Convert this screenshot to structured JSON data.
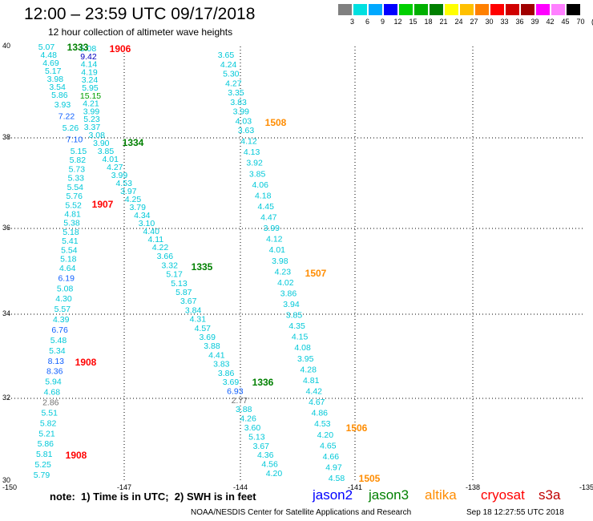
{
  "header": {
    "title": "12:00 – 23:59 UTC 09/17/2018",
    "subtitle": "12 hour collection of altimeter wave heights"
  },
  "color_scale": {
    "labels": [
      "3",
      "6",
      "9",
      "12",
      "15",
      "18",
      "21",
      "24",
      "27",
      "30",
      "33",
      "36",
      "39",
      "42",
      "45",
      "70",
      "(ft)"
    ],
    "colors": [
      "#808080",
      "#00e0e0",
      "#00a8ff",
      "#0000ff",
      "#00d000",
      "#00b000",
      "#008000",
      "#ffff00",
      "#ffc000",
      "#ff8000",
      "#ff0000",
      "#d00000",
      "#a00000",
      "#ff00ff",
      "#ff80ff",
      "#000000"
    ]
  },
  "axes": {
    "x_ticks": [
      "-150",
      "-147",
      "-144",
      "-141",
      "-138",
      "-135"
    ],
    "y_ticks": [
      "40",
      "38",
      "36",
      "34",
      "32",
      "30"
    ]
  },
  "passes": [
    {
      "label": "1333",
      "satellite": "jason3",
      "color": "#008000"
    },
    {
      "label": "1906",
      "satellite": "cryosat",
      "color": "#ff0000"
    },
    {
      "label": "1334",
      "satellite": "jason3",
      "color": "#008000"
    },
    {
      "label": "1907",
      "satellite": "cryosat",
      "color": "#ff0000"
    },
    {
      "label": "1508",
      "satellite": "altika",
      "color": "#ff8c00"
    },
    {
      "label": "1335",
      "satellite": "jason3",
      "color": "#008000"
    },
    {
      "label": "1507",
      "satellite": "altika",
      "color": "#ff8c00"
    },
    {
      "label": "1908",
      "satellite": "cryosat",
      "color": "#ff0000"
    },
    {
      "label": "1336",
      "satellite": "jason3",
      "color": "#008000"
    },
    {
      "label": "1506",
      "satellite": "altika",
      "color": "#ff8c00"
    },
    {
      "label": "1908",
      "satellite": "cryosat",
      "color": "#ff0000"
    },
    {
      "label": "1505",
      "satellite": "altika",
      "color": "#ff8c00"
    }
  ],
  "wave_heights": {
    "track_a": [
      "5.07",
      "4.48",
      "4.69",
      "5.17",
      "3.98",
      "3.54",
      "5.86",
      "3.93",
      "7.22",
      "5.26",
      "7.10",
      "5.15",
      "5.82",
      "5.73",
      "5.33",
      "5.54",
      "5.76",
      "5.52",
      "4.81",
      "5.38",
      "5.18",
      "5.41",
      "5.54",
      "5.18",
      "4.64",
      "6.19",
      "5.08",
      "4.30",
      "5.57",
      "4.39",
      "6.76",
      "5.48",
      "5.34",
      "8.13",
      "8.36",
      "5.94",
      "4.68",
      "2.86",
      "5.51",
      "5.82",
      "5.21",
      "5.86",
      "5.81",
      "5.25",
      "5.79"
    ],
    "track_b": [
      "5.08",
      "9.42",
      "4.14",
      "4.19",
      "3.24",
      "5.95",
      "15.15",
      "4.21",
      "3.99",
      "5.23",
      "3.37",
      "3.08",
      "3.90",
      "3.85",
      "4.01",
      "4.27",
      "3.99",
      "4.53",
      "3.97",
      "4.25",
      "3.79",
      "4.34",
      "3.10",
      "4.40",
      "4.11",
      "4.22",
      "3.66",
      "3.32",
      "5.17",
      "5.13",
      "5.87",
      "3.67",
      "3.84",
      "4.31",
      "4.57",
      "3.69",
      "3.88",
      "4.41",
      "3.83",
      "3.86",
      "3.69",
      "6.93",
      "2.77",
      "3.88",
      "4.26",
      "3.60",
      "5.13",
      "3.67",
      "4.36",
      "4.56",
      "4.20"
    ],
    "track_c": [
      "3.65",
      "4.24",
      "5.30",
      "4.27",
      "3.35",
      "3.83",
      "3.99",
      "4.03",
      "3.63",
      "4.12",
      "4.13",
      "3.92",
      "3.85",
      "4.06",
      "4.18",
      "4.45",
      "4.47",
      "3.99",
      "4.12",
      "4.01",
      "3.98",
      "4.23",
      "4.02",
      "3.86",
      "3.94",
      "3.85",
      "4.35",
      "4.15",
      "4.08",
      "3.95",
      "4.28",
      "4.81",
      "4.42",
      "4.67",
      "4.86",
      "4.53",
      "4.20",
      "4.65",
      "4.66",
      "4.97",
      "4.58"
    ]
  },
  "footer": {
    "note": "note:  1) Time is in UTC;  2) SWH is in feet",
    "satellites": [
      {
        "name": "jason2",
        "color": "#0000ff"
      },
      {
        "name": "jason3",
        "color": "#008000"
      },
      {
        "name": "altika",
        "color": "#ff8c00"
      },
      {
        "name": "cryosat",
        "color": "#ff0000"
      },
      {
        "name": "s3a",
        "color": "#c00000"
      }
    ],
    "credit": "NOAA/NESDIS Center for Satellite Applications and Research",
    "timestamp": "Sep 18 12:27:55 UTC 2018"
  }
}
